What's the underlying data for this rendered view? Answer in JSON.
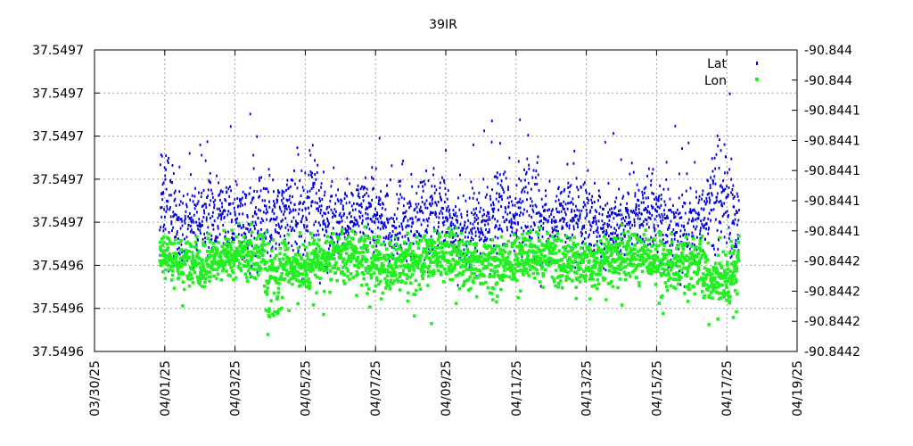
{
  "chart_data": {
    "type": "scatter",
    "title": "39IR",
    "grid": true,
    "legend_position": "top-right",
    "x_tick_labels": [
      "03/30/25",
      "04/01/25",
      "04/03/25",
      "04/05/25",
      "04/07/25",
      "04/09/25",
      "04/11/25",
      "04/13/25",
      "04/15/25",
      "04/17/25",
      "04/19/25"
    ],
    "y_left_tick_labels": [
      "37.5497",
      "37.5497",
      "37.5497",
      "37.5497",
      "37.5497",
      "37.5496",
      "37.5496",
      "37.5496"
    ],
    "y_right_tick_labels": [
      "-90.844",
      "-90.844",
      "-90.8441",
      "-90.8441",
      "-90.8441",
      "-90.8441",
      "-90.8441",
      "-90.8442",
      "-90.8442",
      "-90.8442",
      "-90.8442"
    ],
    "x_range_days": [
      0,
      20
    ],
    "data_start_day": 1.85,
    "data_end_day": 18.35,
    "series": [
      {
        "name": "Lat",
        "axis": "left",
        "color": "#0000dd",
        "marker": "small-dot",
        "baseline_approx": 37.54966,
        "band_approx": [
          37.5496,
          37.54972
        ],
        "note_peaks_days": [
          2.0,
          4.7,
          6.2,
          12.4,
          17.8
        ]
      },
      {
        "name": "Lon",
        "axis": "right",
        "color": "#22ee22",
        "marker": "small-square",
        "baseline_approx": -90.84416,
        "band_approx": [
          -90.84424,
          -90.8441
        ]
      }
    ]
  }
}
